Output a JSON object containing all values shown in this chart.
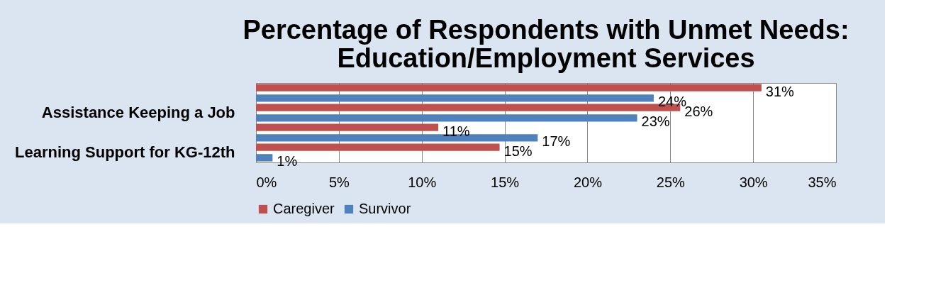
{
  "chart_data": {
    "type": "bar",
    "orientation": "horizontal",
    "title": "Percentage of Respondents with Unmet Needs: Education/Employment Services",
    "categories": [
      null,
      "Assistance Keeping a Job",
      null,
      "Learning Support for KG-12th"
    ],
    "series": [
      {
        "name": "Caregiver",
        "color": "#c0504d",
        "values": [
          30.5,
          25.6,
          11,
          14.7
        ],
        "value_labels": [
          "31%",
          "26%",
          "11%",
          "15%"
        ]
      },
      {
        "name": "Survivor",
        "color": "#4f81bd",
        "values": [
          24,
          23,
          17,
          1
        ],
        "value_labels": [
          "24%",
          "23%",
          "17%",
          "1%"
        ]
      }
    ],
    "xlim": [
      0,
      35
    ],
    "xticks": [
      {
        "value": 0,
        "label": "0%"
      },
      {
        "value": 5,
        "label": "5%"
      },
      {
        "value": 10,
        "label": "10%"
      },
      {
        "value": 15,
        "label": "15%"
      },
      {
        "value": 20,
        "label": "20%"
      },
      {
        "value": 25,
        "label": "25%"
      },
      {
        "value": 30,
        "label": "30%"
      },
      {
        "value": 35,
        "label": "35%"
      }
    ],
    "grid": "x",
    "legend": "bottom"
  }
}
